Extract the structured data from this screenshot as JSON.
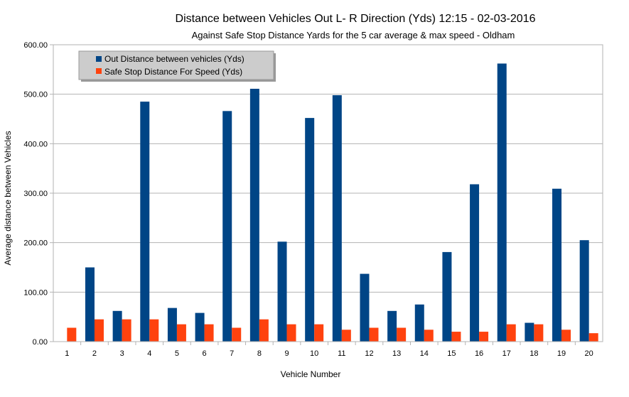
{
  "chart_data": {
    "type": "bar",
    "title": "Distance between Vehicles Out L- R Direction (Yds)  12:15 -  02-03-2016",
    "subtitle": "Against Safe Stop Distance Yards for the 5 car average & max speed - Oldham",
    "xlabel": "Vehicle Number",
    "ylabel": "Average distance between Vehicles",
    "ylim": [
      0,
      600
    ],
    "yticks": [
      "0.00",
      "100.00",
      "200.00",
      "300.00",
      "400.00",
      "500.00",
      "600.00"
    ],
    "grid": true,
    "legend_position": "top-left",
    "categories": [
      "1",
      "2",
      "3",
      "4",
      "5",
      "6",
      "7",
      "8",
      "9",
      "10",
      "11",
      "12",
      "13",
      "14",
      "15",
      "16",
      "17",
      "18",
      "19",
      "20"
    ],
    "series": [
      {
        "name": "Out Distance between vehicles (Yds)",
        "color": "#004586",
        "values": [
          0,
          150,
          62,
          485,
          68,
          58,
          466,
          511,
          202,
          452,
          498,
          137,
          62,
          75,
          181,
          318,
          562,
          38,
          309,
          205
        ]
      },
      {
        "name": "Safe Stop Distance For Speed (Yds)",
        "color": "#ff420e",
        "values": [
          28,
          45,
          45,
          45,
          35,
          35,
          28,
          45,
          35,
          35,
          24,
          28,
          28,
          24,
          20,
          20,
          35,
          35,
          24,
          17
        ]
      }
    ]
  }
}
